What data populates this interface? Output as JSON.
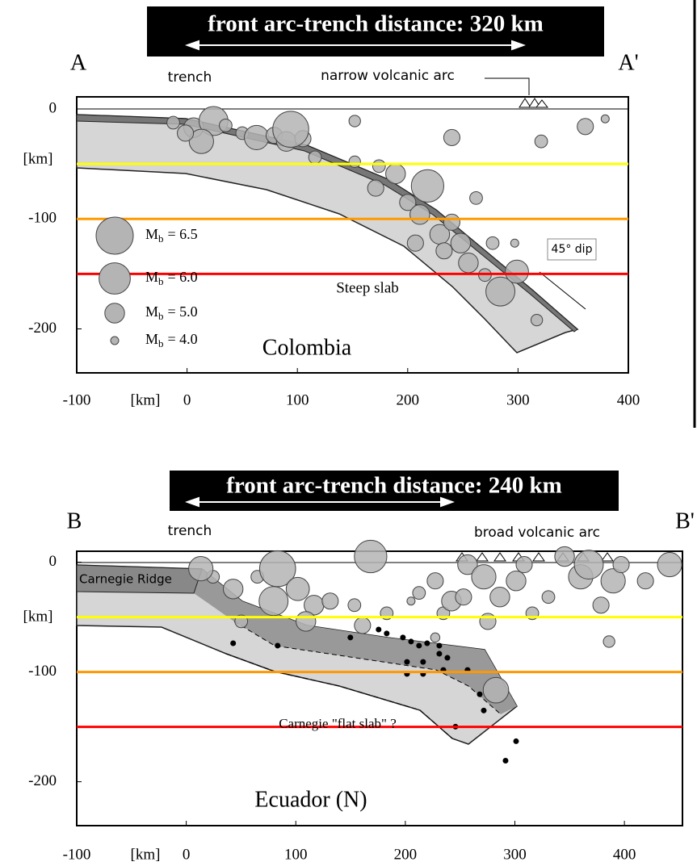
{
  "chart_data": [
    {
      "type": "scatter",
      "title": "front arc-trench distance: 320 km",
      "label_left": "A",
      "label_right": "A'",
      "trench_label": "trench",
      "arc_label": "narrow volcanic arc",
      "dip_label": "45° dip",
      "slab_label": "Steep slab",
      "region_label": "Colombia",
      "xlabel": "[km]",
      "ylabel": "[km]",
      "xlim": [
        -100,
        400
      ],
      "ylim": [
        -240,
        11
      ],
      "xticks": [
        -100,
        0,
        100,
        200,
        300,
        400
      ],
      "yticks": [
        0,
        -100,
        -200
      ],
      "hlines": [
        {
          "value": -50,
          "color": "#ffff00"
        },
        {
          "value": -100,
          "color": "#ff9900"
        },
        {
          "value": -150,
          "color": "#ff0000"
        }
      ],
      "legend_symbol": "M",
      "legend_subscript": "b",
      "legend": [
        {
          "label": "= 6.5",
          "value": 6.5
        },
        {
          "label": "= 6.0",
          "value": 6.0
        },
        {
          "label": "= 5.0",
          "value": 5.0
        },
        {
          "label": "= 4.0",
          "value": 4.0
        }
      ],
      "series": [
        {
          "color": "#b4b4b4",
          "x": [
            -12.5,
            5.9,
            24,
            13,
            -1.5,
            35,
            50,
            63,
            79,
            90,
            105,
            94,
            116,
            152,
            174,
            152,
            171,
            189,
            218,
            200,
            211,
            229,
            240,
            248,
            233,
            255,
            270,
            284,
            299,
            317,
            240,
            321,
            361,
            379,
            262,
            207,
            277,
            297
          ],
          "y": [
            -12.5,
            -17,
            -11,
            -29.5,
            -22,
            -15,
            -22,
            -26,
            -24,
            -29.5,
            -27,
            -18.5,
            -44,
            -11,
            -52,
            -48,
            -72,
            -59,
            -70,
            -85,
            -96,
            -114,
            -103,
            -122,
            -129,
            -140,
            -151,
            -166,
            -148,
            -192,
            -26,
            -29.5,
            -16,
            -9,
            -81,
            -122,
            -122,
            -122
          ],
          "size": [
            4.4,
            5.0,
            5.8,
            5.4,
            4.7,
            4.4,
            4.4,
            5.4,
            4.7,
            5.0,
            4.7,
            6.4,
            4.4,
            4.3,
            4.4,
            4.3,
            4.7,
            5.0,
            6.1,
            4.7,
            5.0,
            5.0,
            4.7,
            5.0,
            4.7,
            5.0,
            4.4,
            5.8,
            5.3,
            4.3,
            4.7,
            4.4,
            4.7,
            4.0,
            4.4,
            4.7,
            4.4,
            4.0
          ]
        }
      ]
    },
    {
      "type": "scatter",
      "title": "front arc-trench distance: 240 km",
      "label_left": "B",
      "label_right": "B'",
      "trench_label": "trench",
      "arc_label": "broad volcanic arc",
      "ridge_label": "Carnegie Ridge",
      "slab_label": "Carnegie \"flat slab\" ?",
      "region_label": "Ecuador (N)",
      "xlabel": "[km]",
      "ylabel": "[km]",
      "xlim": [
        -100,
        453
      ],
      "ylim": [
        -240,
        10
      ],
      "xticks": [
        -100,
        0,
        100,
        200,
        300,
        400
      ],
      "yticks": [
        0,
        -100,
        -200
      ],
      "hlines": [
        {
          "value": -50,
          "color": "#ffff00"
        },
        {
          "value": -100,
          "color": "#ff9900"
        },
        {
          "value": -150,
          "color": "#ff0000"
        }
      ],
      "series": [
        {
          "color": "#b4b4b4",
          "x": [
            24.4,
            42.8,
            64.9,
            83.4,
            79.7,
            101.8,
            116.6,
            131.4,
            109.2,
            168.3,
            153.5,
            160.9,
            183,
            205.2,
            227.3,
            234.7,
            242.1,
            212.5,
            253.1,
            256.8,
            271.6,
            275.3,
            286.3,
            301.1,
            308.5,
            315.9,
            330.6,
            345.4,
            360.1,
            367.5,
            378.6,
            389.7,
            397,
            419.2,
            441.3,
            386,
            227.3,
            282.7,
            50.2,
            13.3
          ],
          "y": [
            -13.3,
            -24.4,
            -13.3,
            -5.9,
            -35.4,
            -24.4,
            -39.1,
            -35.4,
            -53.9,
            5.2,
            -39.1,
            -57.6,
            -46.5,
            -35.4,
            -17,
            -46.5,
            -35.4,
            -28,
            -31.7,
            -2.2,
            -13.3,
            -53.9,
            -31.7,
            -17,
            -2.2,
            -46.5,
            -31.7,
            5.2,
            -13.3,
            -2.2,
            -39.1,
            -17,
            -2.2,
            -17,
            -2.2,
            -72.3,
            -68.6,
            -116.6,
            -53.9,
            -5.9
          ],
          "size": [
            4.4,
            5.0,
            4.4,
            6.4,
            5.8,
            5.3,
            5.0,
            4.7,
            5.0,
            6.1,
            4.4,
            4.7,
            4.4,
            4.0,
            4.7,
            4.4,
            5.0,
            4.4,
            4.7,
            5.0,
            5.4,
            4.7,
            5.0,
            5.0,
            4.7,
            4.4,
            4.4,
            5.0,
            5.4,
            5.8,
            4.7,
            5.4,
            4.7,
            4.7,
            5.4,
            4.3,
            4.1,
            5.5,
            4.4,
            5.4
          ]
        },
        {
          "color": "#000000",
          "x": [
            42.8,
            83.4,
            149.8,
            175.6,
            183,
            197.8,
            205.2,
            212.5,
            219.9,
            231,
            201.5,
            216.2,
            231,
            201.5,
            216.2,
            234.7,
            238.4,
            256.8,
            267.9,
            271.6,
            301.1,
            291.5,
            245.8
          ],
          "y": [
            -73.8,
            -76,
            -68.6,
            -61.3,
            -64.9,
            -68.6,
            -72.3,
            -76,
            -73.8,
            -76,
            -90.8,
            -90.8,
            -83.4,
            -101.8,
            -101.8,
            -98.2,
            -87.1,
            -98.2,
            -120.3,
            -135.1,
            -163.1,
            -180.8,
            -149.8
          ]
        }
      ]
    }
  ]
}
